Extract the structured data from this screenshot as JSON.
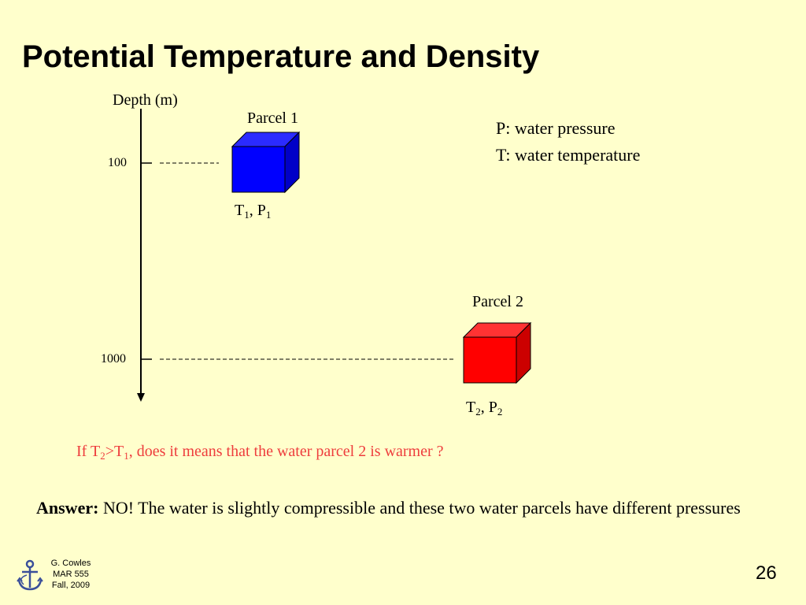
{
  "title": "Potential Temperature and Density",
  "axis": {
    "label": "Depth (m)",
    "ticks": [
      "100",
      "1000"
    ]
  },
  "parcels": [
    {
      "name": "Parcel 1",
      "t_base": "T",
      "t_sub": "1",
      "p_base": "P",
      "p_sub": "1",
      "color": "#0000ff",
      "shade_top": "#2b2bff",
      "shade_side": "#0000c8"
    },
    {
      "name": "Parcel 2",
      "t_base": "T",
      "t_sub": "2",
      "p_base": "P",
      "p_sub": "2",
      "color": "#ff0000",
      "shade_top": "#ff3333",
      "shade_side": "#cc0000"
    }
  ],
  "legend": {
    "line1": "P: water pressure",
    "line2": "T:  water temperature"
  },
  "question": {
    "prefix": "If T",
    "sub1": "2",
    "mid": ">T",
    "sub2": "1",
    "suffix": ", does it means that the water parcel 2 is warmer ?"
  },
  "answer": {
    "label": "Answer:",
    "text": " NO! The water is slightly compressible and these two water parcels have different pressures"
  },
  "footer": {
    "line1": "G. Cowles",
    "line2": "MAR 555",
    "line3": "Fall, 2009"
  },
  "page_number": "26",
  "colors": {
    "background": "#ffffcc",
    "question": "#ee3d3d",
    "logo": "#3a4f9a"
  }
}
